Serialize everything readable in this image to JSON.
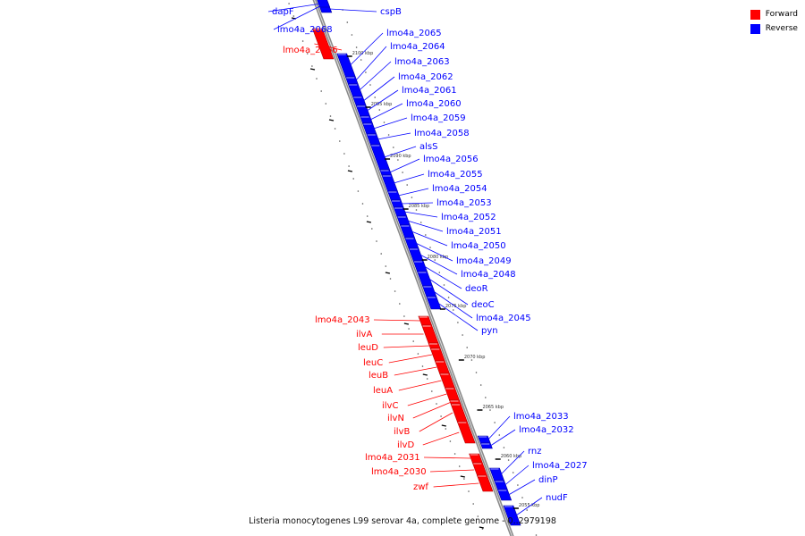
{
  "caption": "Listeria monocytogenes L99 serovar 4a, complete genome - 0..2979198",
  "legend": [
    {
      "label": "Forward",
      "color": "#ff0000"
    },
    {
      "label": "Reverse",
      "color": "#0000ff"
    }
  ],
  "colors": {
    "forward": "#ff0000",
    "reverse": "#0000ff",
    "backbone": "#888888"
  },
  "ticks": [
    "2100 kbp",
    "2095 kbp",
    "2090 kbp",
    "2085 kbp",
    "2080 kbp",
    "2075 kbp",
    "2070 kbp",
    "2065 kbp",
    "2060 kbp",
    "2055 kbp"
  ],
  "genes": [
    {
      "name": "dapF",
      "strand": "reverse"
    },
    {
      "name": "cspB",
      "strand": "reverse"
    },
    {
      "name": "lmo4a_2068",
      "strand": "reverse"
    },
    {
      "name": "lmo4a_2066",
      "strand": "forward"
    },
    {
      "name": "lmo4a_2065",
      "strand": "reverse"
    },
    {
      "name": "lmo4a_2064",
      "strand": "reverse"
    },
    {
      "name": "lmo4a_2063",
      "strand": "reverse"
    },
    {
      "name": "lmo4a_2062",
      "strand": "reverse"
    },
    {
      "name": "lmo4a_2061",
      "strand": "reverse"
    },
    {
      "name": "lmo4a_2060",
      "strand": "reverse"
    },
    {
      "name": "lmo4a_2059",
      "strand": "reverse"
    },
    {
      "name": "lmo4a_2058",
      "strand": "reverse"
    },
    {
      "name": "alsS",
      "strand": "reverse"
    },
    {
      "name": "lmo4a_2056",
      "strand": "reverse"
    },
    {
      "name": "lmo4a_2055",
      "strand": "reverse"
    },
    {
      "name": "lmo4a_2054",
      "strand": "reverse"
    },
    {
      "name": "lmo4a_2053",
      "strand": "reverse"
    },
    {
      "name": "lmo4a_2052",
      "strand": "reverse"
    },
    {
      "name": "lmo4a_2051",
      "strand": "reverse"
    },
    {
      "name": "lmo4a_2050",
      "strand": "reverse"
    },
    {
      "name": "lmo4a_2049",
      "strand": "reverse"
    },
    {
      "name": "lmo4a_2048",
      "strand": "reverse"
    },
    {
      "name": "deoR",
      "strand": "reverse"
    },
    {
      "name": "deoC",
      "strand": "reverse"
    },
    {
      "name": "lmo4a_2045",
      "strand": "reverse"
    },
    {
      "name": "pyn",
      "strand": "reverse"
    },
    {
      "name": "lmo4a_2043",
      "strand": "forward"
    },
    {
      "name": "ilvA",
      "strand": "forward"
    },
    {
      "name": "leuD",
      "strand": "forward"
    },
    {
      "name": "leuC",
      "strand": "forward"
    },
    {
      "name": "leuB",
      "strand": "forward"
    },
    {
      "name": "leuA",
      "strand": "forward"
    },
    {
      "name": "ilvC",
      "strand": "forward"
    },
    {
      "name": "ilvN",
      "strand": "forward"
    },
    {
      "name": "ilvB",
      "strand": "forward"
    },
    {
      "name": "ilvD",
      "strand": "forward"
    },
    {
      "name": "lmo4a_2033",
      "strand": "reverse"
    },
    {
      "name": "lmo4a_2032",
      "strand": "reverse"
    },
    {
      "name": "lmo4a_2031",
      "strand": "forward"
    },
    {
      "name": "lmo4a_2030",
      "strand": "forward"
    },
    {
      "name": "rnz",
      "strand": "reverse"
    },
    {
      "name": "lmo4a_2027",
      "strand": "reverse"
    },
    {
      "name": "dinP",
      "strand": "reverse"
    },
    {
      "name": "zwf",
      "strand": "forward"
    },
    {
      "name": "nudF",
      "strand": "reverse"
    }
  ]
}
